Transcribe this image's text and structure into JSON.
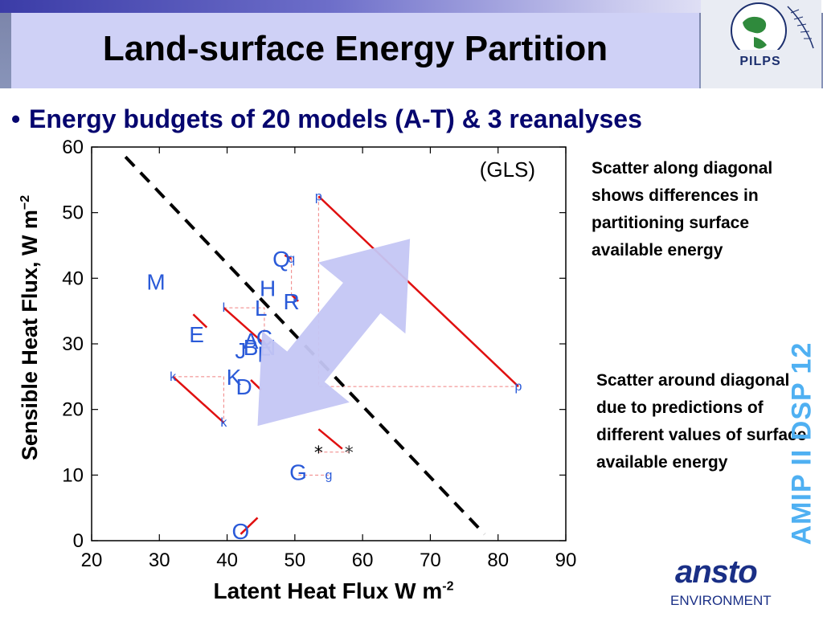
{
  "slide": {
    "title": "Land-surface Energy Partition",
    "bullet": "Energy budgets of 20 models (A-T) & 3 reanalyses",
    "note_1": "Scatter along diagonal shows differences in partitioning surface available energy",
    "note_2": "Scatter around diagonal due to predictions of different values of surface available energy",
    "side_label": "AMIP II DSP 12",
    "logo_label": "PILPS",
    "ansto_logo": "ansto",
    "ansto_sub": "ENVIRONMENT"
  },
  "colors": {
    "title_box": "#cfd1f6",
    "bullet_text": "#06066f",
    "model_letters": "#2a5ad8",
    "red_lines": "#e01010",
    "arrow": "#c4c6f4",
    "side_label": "#4fb0f2",
    "ansto_blue": "#1a2f86"
  },
  "chart_data": {
    "type": "scatter",
    "title": "(GLS)",
    "xlabel": "Latent Heat Flux W m",
    "xlabel_sup": "-2",
    "ylabel": "Sensible Heat Flux, W m",
    "ylabel_sup": "−2",
    "xlim": [
      20,
      90
    ],
    "ylim": [
      0,
      60
    ],
    "xticks": [
      20,
      30,
      40,
      50,
      60,
      70,
      80,
      90
    ],
    "yticks": [
      0,
      10,
      20,
      30,
      40,
      50,
      60
    ],
    "diagonal": {
      "from": [
        25,
        58.5
      ],
      "to": [
        78,
        1
      ]
    },
    "points": [
      {
        "label": "M",
        "x": 29.5,
        "y": 39.5,
        "size": "large"
      },
      {
        "label": "E",
        "x": 35.5,
        "y": 31.5,
        "size": "large"
      },
      {
        "label": "K",
        "x": 41,
        "y": 25,
        "size": "large"
      },
      {
        "label": "D",
        "x": 42.5,
        "y": 23.5,
        "size": "large"
      },
      {
        "label": "J",
        "x": 42,
        "y": 29,
        "size": "large"
      },
      {
        "label": "B",
        "x": 43.5,
        "y": 29.5,
        "size": "large"
      },
      {
        "label": "A",
        "x": 43.5,
        "y": 30.5,
        "size": "large"
      },
      {
        "label": "C",
        "x": 45.5,
        "y": 31,
        "size": "large"
      },
      {
        "label": "N",
        "x": 46,
        "y": 29.5,
        "size": "large"
      },
      {
        "label": "F",
        "x": 45.5,
        "y": 28.5,
        "size": "large"
      },
      {
        "label": "H",
        "x": 46,
        "y": 38.5,
        "size": "large"
      },
      {
        "label": "L",
        "x": 45,
        "y": 35.5,
        "size": "large"
      },
      {
        "label": "R",
        "x": 49.5,
        "y": 36.5,
        "size": "large"
      },
      {
        "label": "Q",
        "x": 48,
        "y": 43,
        "size": "large"
      },
      {
        "label": "G",
        "x": 50.5,
        "y": 10.5,
        "size": "large"
      },
      {
        "label": "O",
        "x": 42,
        "y": 1.5,
        "size": "large"
      },
      {
        "label": "p",
        "x": 53.5,
        "y": 52.5,
        "size": "small"
      },
      {
        "label": "p",
        "x": 83,
        "y": 23.5,
        "size": "small"
      },
      {
        "label": "q",
        "x": 49.5,
        "y": 43,
        "size": "small"
      },
      {
        "label": "r",
        "x": 50,
        "y": 36.5,
        "size": "small"
      },
      {
        "label": "k",
        "x": 32,
        "y": 25,
        "size": "small"
      },
      {
        "label": "k",
        "x": 39.5,
        "y": 18,
        "size": "small"
      },
      {
        "label": "l",
        "x": 39.5,
        "y": 35.5,
        "size": "small"
      },
      {
        "label": "g",
        "x": 55,
        "y": 10,
        "size": "small"
      }
    ],
    "stars": [
      {
        "x": 53.5,
        "y": 13.5,
        "color": "#000000"
      },
      {
        "x": 58,
        "y": 13.5,
        "color": "#333333"
      }
    ],
    "red_segments": [
      {
        "from": [
          53.5,
          52.5
        ],
        "to": [
          83,
          23.5
        ]
      },
      {
        "from": [
          48.5,
          43.5
        ],
        "to": [
          49.5,
          43
        ]
      },
      {
        "from": [
          32,
          25
        ],
        "to": [
          39.5,
          18
        ]
      },
      {
        "from": [
          39.5,
          35.5
        ],
        "to": [
          45.5,
          30
        ]
      },
      {
        "from": [
          35,
          34.5
        ],
        "to": [
          37,
          32.5
        ]
      },
      {
        "from": [
          49.5,
          37.5
        ],
        "to": [
          50.5,
          36.5
        ]
      },
      {
        "from": [
          53.5,
          17
        ],
        "to": [
          57,
          14
        ]
      },
      {
        "from": [
          42,
          1
        ],
        "to": [
          44.5,
          3.5
        ]
      },
      {
        "from": [
          43.5,
          24.5
        ],
        "to": [
          45,
          23
        ]
      }
    ],
    "dashed_links": [
      {
        "points": [
          [
            53.5,
            52.5
          ],
          [
            53.5,
            23.5
          ],
          [
            83,
            23.5
          ]
        ]
      },
      {
        "points": [
          [
            32,
            25
          ],
          [
            39.5,
            25
          ],
          [
            39.5,
            18
          ]
        ]
      },
      {
        "points": [
          [
            39.5,
            35.5
          ],
          [
            45.5,
            35.5
          ],
          [
            45.5,
            30
          ]
        ]
      },
      {
        "points": [
          [
            49.5,
            43
          ],
          [
            49.5,
            37
          ]
        ]
      },
      {
        "points": [
          [
            53.5,
            13.5
          ],
          [
            58,
            13.5
          ]
        ]
      },
      {
        "points": [
          [
            50.5,
            10
          ],
          [
            55,
            10
          ]
        ]
      }
    ],
    "arrow": {
      "tail": [
        44.5,
        17.5
      ],
      "head": [
        67,
        46
      ]
    },
    "grid": false,
    "legend": "none"
  }
}
